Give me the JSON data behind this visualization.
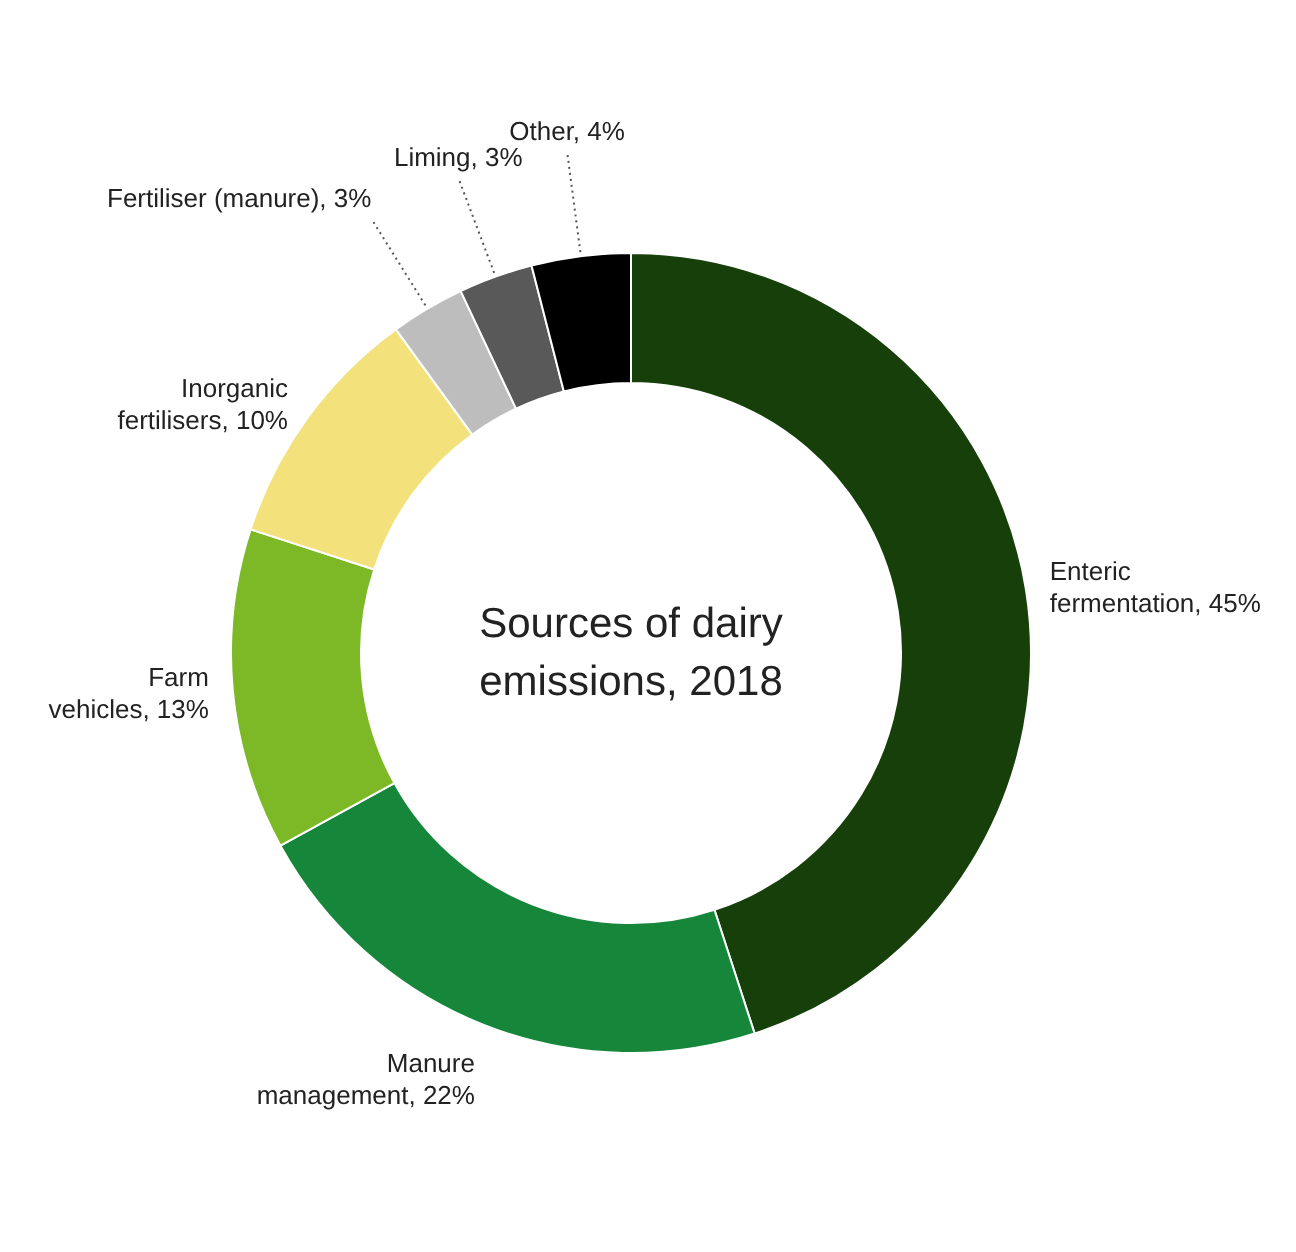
{
  "chart_data": {
    "type": "donut",
    "title": "Sources of dairy emissions, 2018",
    "categories": [
      "Enteric fermentation",
      "Manure management",
      "Farm vehicles",
      "Inorganic fertilisers",
      "Fertiliser (manure)",
      "Liming",
      "Other"
    ],
    "values": [
      45,
      22,
      13,
      10,
      3,
      3,
      4
    ],
    "value_labels": [
      "45%",
      "22%",
      "13%",
      "10%",
      "3%",
      "3%",
      "4%"
    ],
    "colors": [
      "#163f0a",
      "#16873a",
      "#7db927",
      "#f3e27c",
      "#bdbdbd",
      "#595959",
      "#000000"
    ]
  }
}
